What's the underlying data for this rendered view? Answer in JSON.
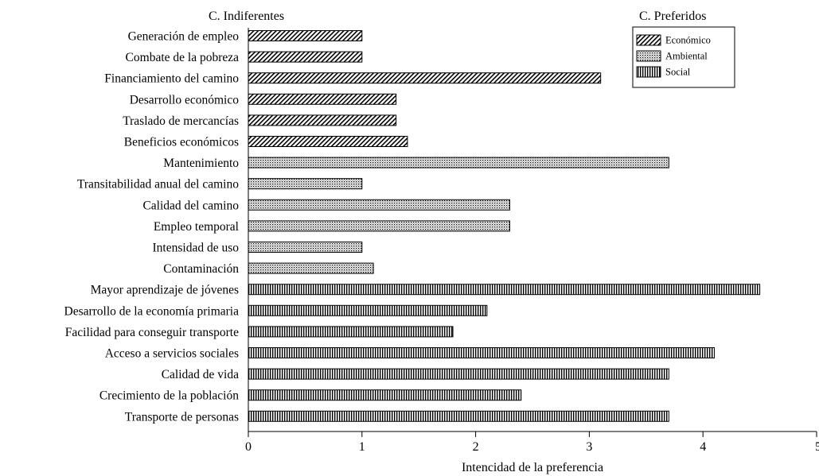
{
  "chart_data": {
    "type": "bar",
    "orientation": "horizontal",
    "left_label": "C. Indiferentes",
    "right_label": "C. Preferidos",
    "xlabel": "Intencidad de la preferencia",
    "ylabel": "",
    "xlim": [
      0,
      5
    ],
    "xticks": [
      "0",
      "1",
      "2",
      "3",
      "4",
      "5"
    ],
    "grid": false,
    "legend_position": "top-right",
    "legend": [
      {
        "key": "economico",
        "label": "Económico"
      },
      {
        "key": "ambiental",
        "label": "Ambiental"
      },
      {
        "key": "social",
        "label": "Social"
      }
    ],
    "bars": [
      {
        "label": "Generación de empleo",
        "value": 1.0,
        "series": "economico"
      },
      {
        "label": "Combate de la pobreza",
        "value": 1.0,
        "series": "economico"
      },
      {
        "label": "Financiamiento del camino",
        "value": 3.1,
        "series": "economico"
      },
      {
        "label": "Desarrollo económico",
        "value": 1.3,
        "series": "economico"
      },
      {
        "label": "Traslado de mercancías",
        "value": 1.3,
        "series": "economico"
      },
      {
        "label": "Beneficios económicos",
        "value": 1.4,
        "series": "economico"
      },
      {
        "label": "Mantenimiento",
        "value": 3.7,
        "series": "ambiental"
      },
      {
        "label": "Transitabilidad anual del camino",
        "value": 1.0,
        "series": "ambiental"
      },
      {
        "label": "Calidad del camino",
        "value": 2.3,
        "series": "ambiental"
      },
      {
        "label": "Empleo temporal",
        "value": 2.3,
        "series": "ambiental"
      },
      {
        "label": "Intensidad de uso",
        "value": 1.0,
        "series": "ambiental"
      },
      {
        "label": "Contaminación",
        "value": 1.1,
        "series": "ambiental"
      },
      {
        "label": "Mayor aprendizaje de jóvenes",
        "value": 4.5,
        "series": "social"
      },
      {
        "label": "Desarrollo de la economía primaria",
        "value": 2.1,
        "series": "social"
      },
      {
        "label": "Facilidad para conseguir transporte",
        "value": 1.8,
        "series": "social"
      },
      {
        "label": "Acceso a servicios sociales",
        "value": 4.1,
        "series": "social"
      },
      {
        "label": "Calidad de vida",
        "value": 3.7,
        "series": "social"
      },
      {
        "label": "Crecimiento de la población",
        "value": 2.4,
        "series": "social"
      },
      {
        "label": "Transporte de personas",
        "value": 3.7,
        "series": "social"
      }
    ]
  }
}
